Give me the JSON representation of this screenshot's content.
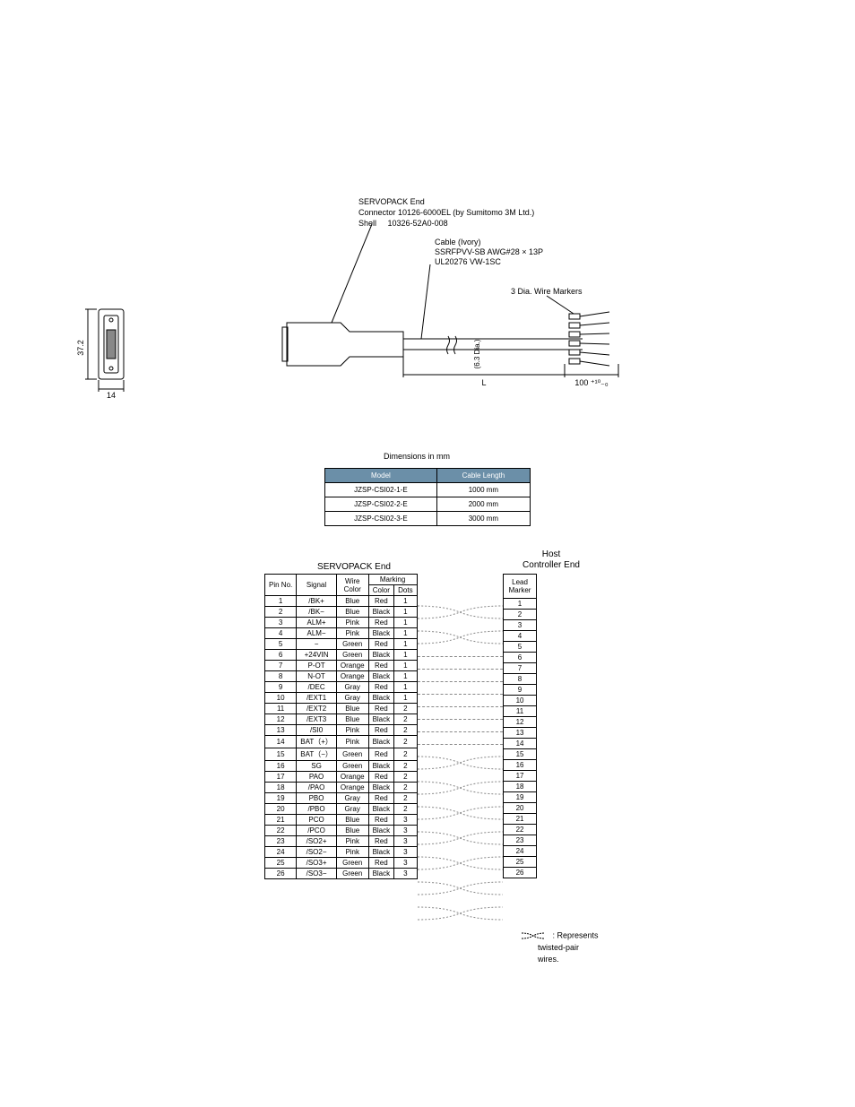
{
  "diagram": {
    "servopack_end_label": "SERVOPACK End",
    "connector_label": "Connector 10126-6000EL (by Sumitomo 3M Ltd.)",
    "shell_label": "Shell",
    "shell_partno": "10326-52A0-008",
    "cable_color_label": "Cable (Ivory)",
    "cable_spec1": "SSRFPVV-SB AWG#28 × 13P",
    "cable_spec2": "UL20276  VW-1SC",
    "wire_markers_label": "3 Dia. Wire Markers",
    "dim_height": "37.2",
    "dim_width": "14",
    "dim_dia": "(6.3 Dia.)",
    "dim_L": "L",
    "dim_end": "100 ⁺¹⁰₋₀",
    "dimensions_caption": "Dimensions in mm"
  },
  "model_table": {
    "headers": [
      "Model",
      "Cable Length"
    ],
    "rows": [
      [
        "JZSP-CSI02-1-E",
        "1000 mm"
      ],
      [
        "JZSP-CSI02-2-E",
        "2000 mm"
      ],
      [
        "JZSP-CSI02-3-E",
        "3000 mm"
      ]
    ],
    "header_bg": "#6b8fa8"
  },
  "pin_table": {
    "servopack_title": "SERVOPACK End",
    "host_title_line1": "Host",
    "host_title_line2": "Controller End",
    "headers": {
      "pin_no": "Pin No.",
      "signal": "Signal",
      "wire_color": "Wire\nColor",
      "marking": "Marking",
      "marking_color": "Color",
      "marking_dots": "Dots",
      "lead_marker": "Lead\nMarker"
    },
    "rows": [
      {
        "pin": "1",
        "signal": "/BK+",
        "wire": "Blue",
        "mcolor": "Red",
        "dots": "1",
        "lead": "1",
        "twist": "start"
      },
      {
        "pin": "2",
        "signal": "/BK−",
        "wire": "Blue",
        "mcolor": "Black",
        "dots": "1",
        "lead": "2",
        "twist": "end"
      },
      {
        "pin": "3",
        "signal": "ALM+",
        "wire": "Pink",
        "mcolor": "Red",
        "dots": "1",
        "lead": "3",
        "twist": "start"
      },
      {
        "pin": "4",
        "signal": "ALM−",
        "wire": "Pink",
        "mcolor": "Black",
        "dots": "1",
        "lead": "4",
        "twist": "end"
      },
      {
        "pin": "5",
        "signal": "−",
        "wire": "Green",
        "mcolor": "Red",
        "dots": "1",
        "lead": "5",
        "twist": "none"
      },
      {
        "pin": "6",
        "signal": "+24VIN",
        "wire": "Green",
        "mcolor": "Black",
        "dots": "1",
        "lead": "6",
        "twist": "none"
      },
      {
        "pin": "7",
        "signal": "P-OT",
        "wire": "Orange",
        "mcolor": "Red",
        "dots": "1",
        "lead": "7",
        "twist": "none"
      },
      {
        "pin": "8",
        "signal": "N-OT",
        "wire": "Orange",
        "mcolor": "Black",
        "dots": "1",
        "lead": "8",
        "twist": "none"
      },
      {
        "pin": "9",
        "signal": "/DEC",
        "wire": "Gray",
        "mcolor": "Red",
        "dots": "1",
        "lead": "9",
        "twist": "none"
      },
      {
        "pin": "10",
        "signal": "/EXT1",
        "wire": "Gray",
        "mcolor": "Black",
        "dots": "1",
        "lead": "10",
        "twist": "none"
      },
      {
        "pin": "11",
        "signal": "/EXT2",
        "wire": "Blue",
        "mcolor": "Red",
        "dots": "2",
        "lead": "11",
        "twist": "none"
      },
      {
        "pin": "12",
        "signal": "/EXT3",
        "wire": "Blue",
        "mcolor": "Black",
        "dots": "2",
        "lead": "12",
        "twist": "none"
      },
      {
        "pin": "13",
        "signal": "/SI0",
        "wire": "Pink",
        "mcolor": "Red",
        "dots": "2",
        "lead": "13",
        "twist": "start"
      },
      {
        "pin": "14",
        "signal": "BAT（+）",
        "wire": "Pink",
        "mcolor": "Black",
        "dots": "2",
        "lead": "14",
        "twist": "end"
      },
      {
        "pin": "15",
        "signal": "BAT（−）",
        "wire": "Green",
        "mcolor": "Red",
        "dots": "2",
        "lead": "15",
        "twist": "start"
      },
      {
        "pin": "16",
        "signal": "SG",
        "wire": "Green",
        "mcolor": "Black",
        "dots": "2",
        "lead": "16",
        "twist": "end"
      },
      {
        "pin": "17",
        "signal": "PAO",
        "wire": "Orange",
        "mcolor": "Red",
        "dots": "2",
        "lead": "17",
        "twist": "start"
      },
      {
        "pin": "18",
        "signal": "/PAO",
        "wire": "Orange",
        "mcolor": "Black",
        "dots": "2",
        "lead": "18",
        "twist": "end"
      },
      {
        "pin": "19",
        "signal": "PBO",
        "wire": "Gray",
        "mcolor": "Red",
        "dots": "2",
        "lead": "19",
        "twist": "start"
      },
      {
        "pin": "20",
        "signal": "/PBO",
        "wire": "Gray",
        "mcolor": "Black",
        "dots": "2",
        "lead": "20",
        "twist": "end"
      },
      {
        "pin": "21",
        "signal": "PCO",
        "wire": "Blue",
        "mcolor": "Red",
        "dots": "3",
        "lead": "21",
        "twist": "start"
      },
      {
        "pin": "22",
        "signal": "/PCO",
        "wire": "Blue",
        "mcolor": "Black",
        "dots": "3",
        "lead": "22",
        "twist": "end"
      },
      {
        "pin": "23",
        "signal": "/SO2+",
        "wire": "Pink",
        "mcolor": "Red",
        "dots": "3",
        "lead": "23",
        "twist": "start"
      },
      {
        "pin": "24",
        "signal": "/SO2−",
        "wire": "Pink",
        "mcolor": "Black",
        "dots": "3",
        "lead": "24",
        "twist": "end"
      },
      {
        "pin": "25",
        "signal": "/SO3+",
        "wire": "Green",
        "mcolor": "Red",
        "dots": "3",
        "lead": "25",
        "twist": "start"
      },
      {
        "pin": "26",
        "signal": "/SO3−",
        "wire": "Green",
        "mcolor": "Black",
        "dots": "3",
        "lead": "26",
        "twist": "end"
      }
    ]
  },
  "twisted_note": {
    "text1": "Represents",
    "text2": "twisted-pair",
    "text3": "wires."
  }
}
